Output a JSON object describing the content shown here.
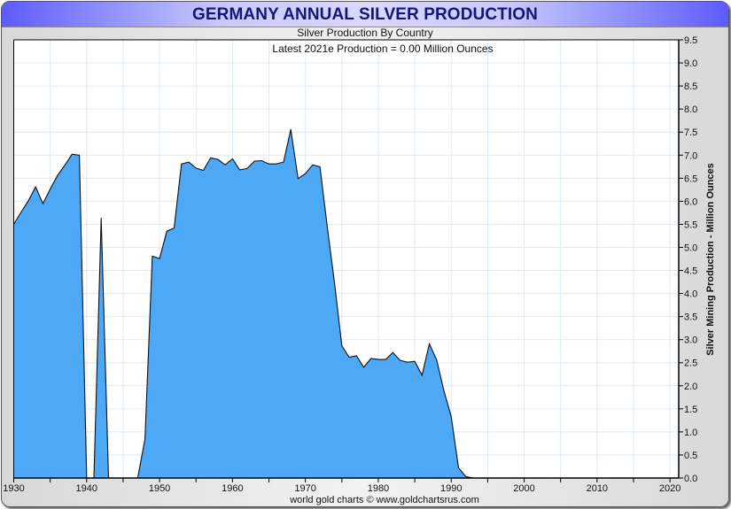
{
  "header": {
    "title": "GERMANY ANNUAL SILVER PRODUCTION"
  },
  "footer": {
    "credit": "world gold charts © www.goldchartsrus.com"
  },
  "colors": {
    "fill": "#4da8f5",
    "line": "#111111",
    "grid": "#dcebf7",
    "title": "#14147a"
  },
  "chart_data": {
    "type": "area",
    "title": "Silver Production By Country",
    "subtitle": "Latest 2021e Production = 0.00 Million Ounces",
    "xlabel": "",
    "ylabel": "Silver Mining Production - Million Ounces",
    "xlim": [
      1930,
      2021.2
    ],
    "ylim": [
      0,
      9.5
    ],
    "grid": true,
    "y_axis_position": "right",
    "x_ticks": [
      "1930",
      "1940",
      "1950",
      "1960",
      "1970",
      "1980",
      "1990",
      "2000",
      "2010",
      "2020"
    ],
    "y_ticks": [
      "0.0",
      "0.5",
      "1.0",
      "1.5",
      "2.0",
      "2.5",
      "3.0",
      "3.5",
      "4.0",
      "4.5",
      "5.0",
      "5.5",
      "6.0",
      "6.5",
      "7.0",
      "7.5",
      "8.0",
      "8.5",
      "9.0",
      "9.5"
    ],
    "x": [
      1930,
      1931,
      1932,
      1933,
      1934,
      1935,
      1936,
      1937,
      1938,
      1939,
      1940,
      1941,
      1942,
      1943,
      1944,
      1945,
      1946,
      1947,
      1948,
      1949,
      1950,
      1951,
      1952,
      1953,
      1954,
      1955,
      1956,
      1957,
      1958,
      1959,
      1960,
      1961,
      1962,
      1963,
      1964,
      1965,
      1966,
      1967,
      1968,
      1969,
      1970,
      1971,
      1972,
      1973,
      1974,
      1975,
      1976,
      1977,
      1978,
      1979,
      1980,
      1981,
      1982,
      1983,
      1984,
      1985,
      1986,
      1987,
      1988,
      1989,
      1990,
      1991,
      1992,
      1993,
      1994,
      1995,
      1996,
      1997,
      1998,
      1999,
      2000,
      2001,
      2002,
      2003,
      2004,
      2005,
      2006,
      2007,
      2008,
      2009,
      2010,
      2011,
      2012,
      2013,
      2014,
      2015,
      2016,
      2017,
      2018,
      2019,
      2020,
      2021
    ],
    "values": [
      5.5,
      5.76,
      6.01,
      6.31,
      5.95,
      6.26,
      6.56,
      6.78,
      7.02,
      7.0,
      0,
      0,
      5.64,
      0,
      0,
      0,
      0,
      0,
      0.84,
      4.81,
      4.76,
      5.35,
      5.42,
      6.81,
      6.85,
      6.72,
      6.67,
      6.94,
      6.91,
      6.79,
      6.92,
      6.68,
      6.71,
      6.87,
      6.88,
      6.81,
      6.81,
      6.85,
      7.56,
      6.49,
      6.6,
      6.79,
      6.75,
      5.44,
      4.22,
      2.87,
      2.62,
      2.65,
      2.4,
      2.59,
      2.57,
      2.57,
      2.72,
      2.55,
      2.51,
      2.53,
      2.23,
      2.91,
      2.56,
      1.89,
      1.34,
      0.22,
      0.03,
      0,
      0,
      0,
      0,
      0,
      0,
      0,
      0,
      0,
      0,
      0,
      0,
      0,
      0,
      0,
      0,
      0,
      0,
      0,
      0,
      0,
      0,
      0,
      0,
      0,
      0,
      0,
      0,
      0
    ]
  }
}
